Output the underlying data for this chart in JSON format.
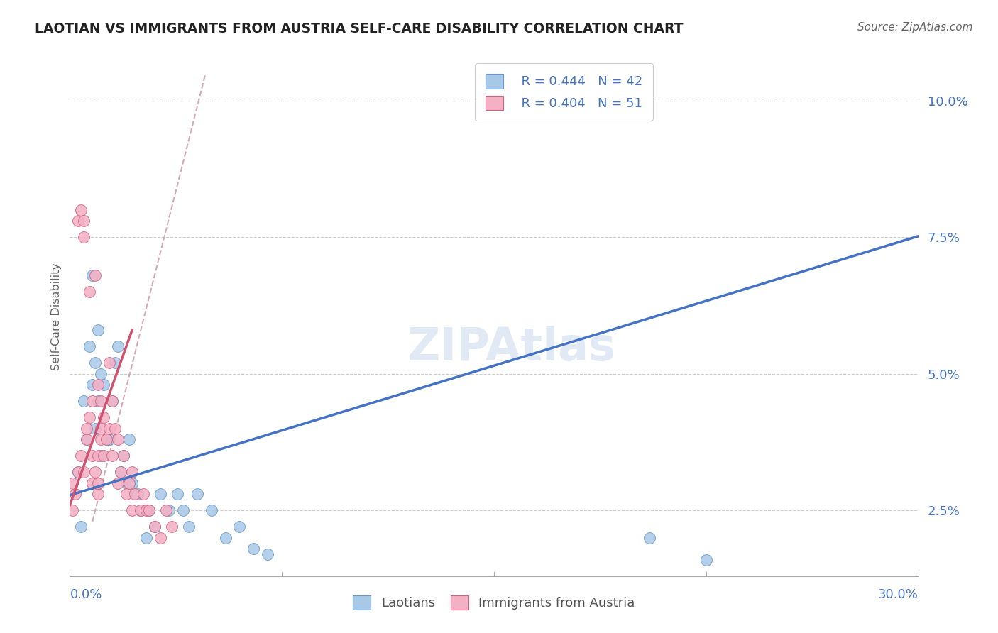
{
  "title": "LAOTIAN VS IMMIGRANTS FROM AUSTRIA SELF-CARE DISABILITY CORRELATION CHART",
  "source": "Source: ZipAtlas.com",
  "ylabel": "Self-Care Disability",
  "ytick_values": [
    2.5,
    5.0,
    7.5,
    10.0
  ],
  "xmin": 0.0,
  "xmax": 30.0,
  "ymin": 1.3,
  "ymax": 10.8,
  "legend_R_blue": "R = 0.444",
  "legend_N_blue": "N = 42",
  "legend_R_pink": "R = 0.404",
  "legend_N_pink": "N = 51",
  "blue_color": "#a8c8e8",
  "pink_color": "#f4b0c4",
  "blue_edge_color": "#6898c8",
  "pink_edge_color": "#d06080",
  "blue_line_color": "#4472c4",
  "pink_line_color": "#d05070",
  "pink_dash_color": "#d8a8b8",
  "text_blue": "#4472c4",
  "grid_color": "#cccccc",
  "watermark_color": "#c8d8ec",
  "blue_line_start_x": 0.0,
  "blue_line_start_y": 2.78,
  "blue_line_end_x": 30.0,
  "blue_line_end_y": 7.52,
  "pink_line_start_x": 0.0,
  "pink_line_start_y": 2.6,
  "pink_line_end_x": 2.2,
  "pink_line_end_y": 5.8,
  "dash_start_x": 0.8,
  "dash_start_y": 2.3,
  "dash_end_x": 4.8,
  "dash_end_y": 10.5,
  "laotians_x": [
    0.3,
    0.4,
    0.5,
    0.6,
    0.7,
    0.8,
    0.8,
    0.9,
    0.9,
    1.0,
    1.0,
    1.1,
    1.1,
    1.2,
    1.3,
    1.4,
    1.5,
    1.6,
    1.7,
    1.8,
    1.9,
    2.0,
    2.1,
    2.2,
    2.4,
    2.5,
    2.7,
    2.8,
    3.0,
    3.2,
    3.5,
    3.8,
    4.0,
    4.2,
    4.5,
    5.0,
    5.5,
    6.0,
    6.5,
    7.0,
    20.5,
    22.5
  ],
  "laotians_y": [
    3.2,
    2.2,
    4.5,
    3.8,
    5.5,
    4.8,
    6.8,
    5.2,
    4.0,
    5.8,
    4.5,
    3.5,
    5.0,
    4.8,
    3.8,
    3.8,
    4.5,
    5.2,
    5.5,
    3.2,
    3.5,
    3.0,
    3.8,
    3.0,
    2.8,
    2.5,
    2.0,
    2.5,
    2.2,
    2.8,
    2.5,
    2.8,
    2.5,
    2.2,
    2.8,
    2.5,
    2.0,
    2.2,
    1.8,
    1.7,
    2.0,
    1.6
  ],
  "austria_x": [
    0.1,
    0.1,
    0.2,
    0.3,
    0.3,
    0.4,
    0.4,
    0.5,
    0.5,
    0.5,
    0.6,
    0.6,
    0.7,
    0.7,
    0.8,
    0.8,
    0.8,
    0.9,
    0.9,
    1.0,
    1.0,
    1.0,
    1.0,
    1.1,
    1.1,
    1.1,
    1.2,
    1.2,
    1.3,
    1.4,
    1.4,
    1.5,
    1.5,
    1.6,
    1.7,
    1.7,
    1.8,
    1.9,
    2.0,
    2.1,
    2.2,
    2.2,
    2.3,
    2.5,
    2.6,
    2.7,
    2.8,
    3.0,
    3.2,
    3.4,
    3.6
  ],
  "austria_y": [
    3.0,
    2.5,
    2.8,
    3.2,
    7.8,
    8.0,
    3.5,
    7.5,
    7.8,
    3.2,
    3.8,
    4.0,
    4.2,
    6.5,
    3.0,
    3.5,
    4.5,
    6.8,
    3.2,
    2.8,
    3.0,
    3.5,
    4.8,
    4.0,
    4.5,
    3.8,
    4.2,
    3.5,
    3.8,
    5.2,
    4.0,
    3.5,
    4.5,
    4.0,
    3.8,
    3.0,
    3.2,
    3.5,
    2.8,
    3.0,
    3.2,
    2.5,
    2.8,
    2.5,
    2.8,
    2.5,
    2.5,
    2.2,
    2.0,
    2.5,
    2.2
  ]
}
